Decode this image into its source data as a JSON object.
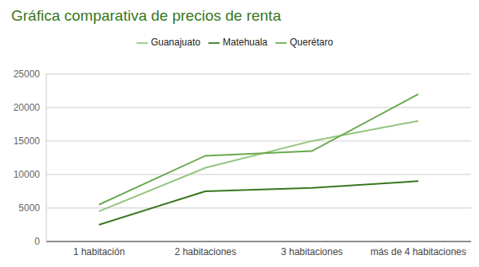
{
  "chart_data": {
    "type": "line",
    "title": "Gráfica comparativa de precios de renta",
    "categories": [
      "1 habitación",
      "2 habitaciones",
      "3 habitaciones",
      "más de 4 habitaciones"
    ],
    "series": [
      {
        "name": "Matehuala",
        "color": "#38761d",
        "values": [
          2500,
          7500,
          8000,
          9000
        ]
      },
      {
        "name": "Guanajuato",
        "color": "#93c47d",
        "values": [
          4500,
          11000,
          15000,
          18000
        ]
      },
      {
        "name": "Querétaro",
        "color": "#6aa84f",
        "values": [
          5500,
          12800,
          13500,
          22000
        ]
      }
    ],
    "ylim": [
      0,
      25000
    ],
    "yticks": [
      0,
      5000,
      10000,
      15000,
      20000,
      25000
    ],
    "grid": true,
    "legend": "top"
  }
}
